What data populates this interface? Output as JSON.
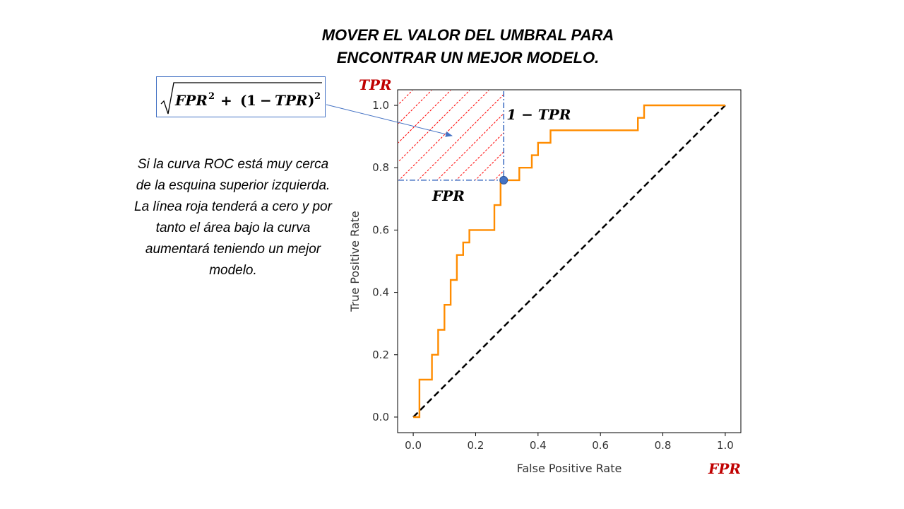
{
  "title_line1": "MOVER EL VALOR DEL UMBRAL PARA",
  "title_line2": "ENCONTRAR UN MEJOR MODELO.",
  "formula": {
    "base1": "FPR",
    "exp1": "2",
    "plus": "+",
    "paren_open": "(",
    "one": "1",
    "minus": "−",
    "base2": "TPR",
    "paren_close": ")",
    "exp2": "2"
  },
  "description": "Si la curva ROC está muy cerca de la esquina superior izquierda. La línea roja tenderá a cero y por tanto el área bajo la curva aumentará teniendo un mejor modelo.",
  "annotations": {
    "tpr_axis": "TPR",
    "fpr_axis": "FPR",
    "fpr_segment": "FPR",
    "one_minus_tpr": "1 − TPR"
  },
  "colors": {
    "roc": "#ff8c00",
    "diagonal": "#000000",
    "axis_label_red": "#c00000",
    "guide_blue": "#4472c4",
    "hatch_red": "#ff0000",
    "point": "#4472c4"
  },
  "chart_data": {
    "type": "line",
    "xlabel": "False Positive Rate",
    "ylabel": "True Positive Rate",
    "xlim": [
      -0.05,
      1.05
    ],
    "ylim": [
      -0.05,
      1.05
    ],
    "xticks": [
      0.0,
      0.2,
      0.4,
      0.6,
      0.8,
      1.0
    ],
    "yticks": [
      0.0,
      0.2,
      0.4,
      0.6,
      0.8,
      1.0
    ],
    "tick_labels_x": [
      "0.0",
      "0.2",
      "0.4",
      "0.6",
      "0.8",
      "1.0"
    ],
    "tick_labels_y": [
      "0.0",
      "0.2",
      "0.4",
      "0.6",
      "0.8",
      "1.0"
    ],
    "grid": false,
    "series": [
      {
        "style": "step-solid-orange",
        "x": [
          0.0,
          0.02,
          0.02,
          0.02,
          0.06,
          0.06,
          0.08,
          0.08,
          0.1,
          0.1,
          0.12,
          0.12,
          0.14,
          0.14,
          0.16,
          0.16,
          0.18,
          0.18,
          0.26,
          0.26,
          0.28,
          0.28,
          0.34,
          0.34,
          0.38,
          0.38,
          0.4,
          0.4,
          0.44,
          0.44,
          0.72,
          0.72,
          0.74,
          0.74,
          1.0
        ],
        "y": [
          0.0,
          0.0,
          0.04,
          0.12,
          0.12,
          0.2,
          0.2,
          0.28,
          0.28,
          0.36,
          0.36,
          0.44,
          0.44,
          0.52,
          0.52,
          0.56,
          0.56,
          0.6,
          0.6,
          0.68,
          0.68,
          0.76,
          0.76,
          0.8,
          0.8,
          0.84,
          0.84,
          0.88,
          0.88,
          0.92,
          0.92,
          0.96,
          0.96,
          1.0,
          1.0
        ]
      },
      {
        "style": "dashed-black",
        "x": [
          0.0,
          1.0
        ],
        "y": [
          0.0,
          1.0
        ]
      }
    ],
    "highlight_point": {
      "x": 0.29,
      "y": 0.76
    }
  }
}
